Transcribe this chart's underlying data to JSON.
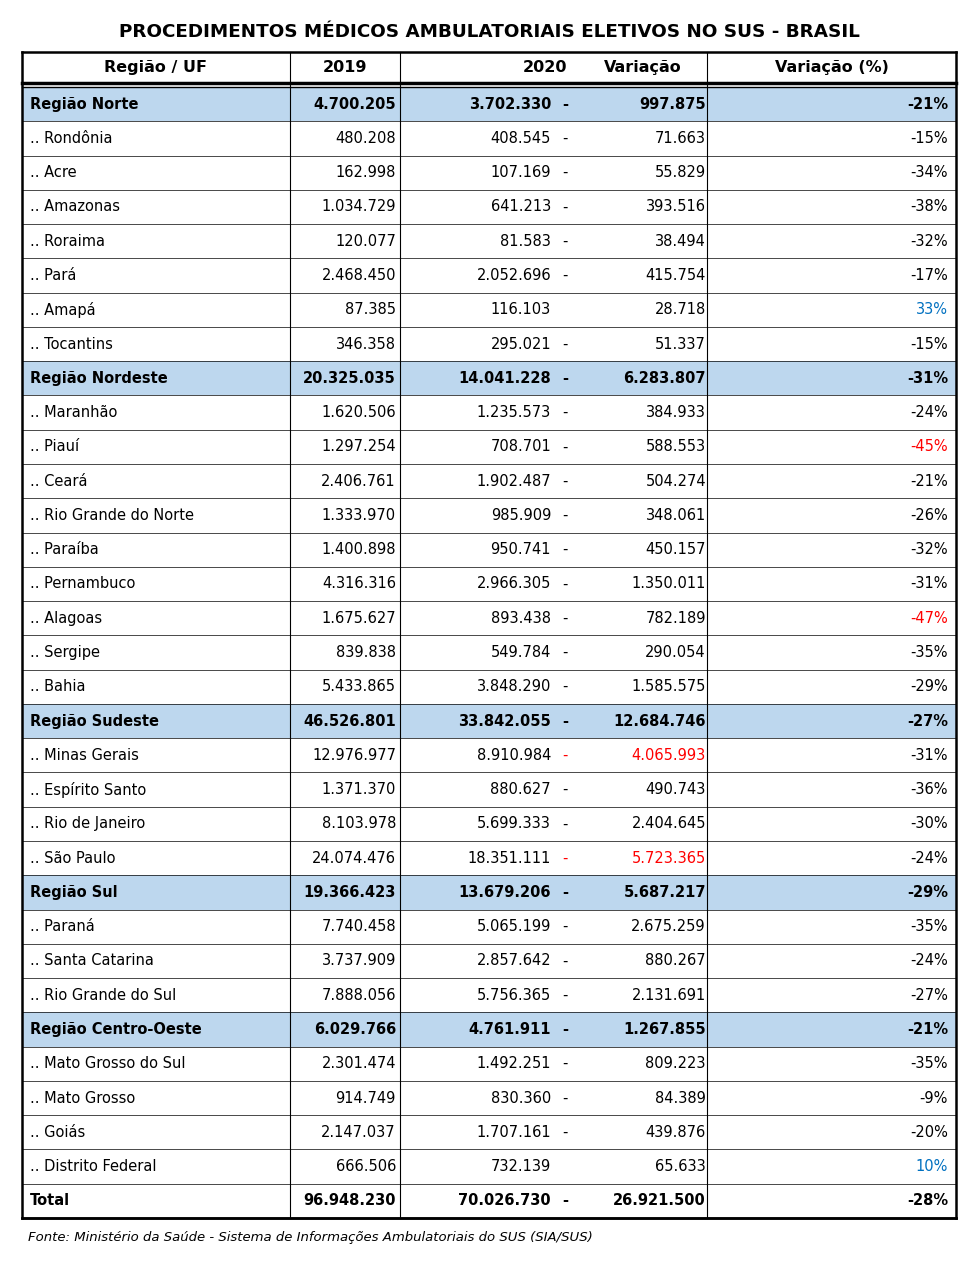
{
  "title": "PROCEDIMENTOS MÉDICOS AMBULATORIAIS ELETIVOS NO SUS - BRASIL",
  "footer": "Fonte: Ministério da Saúde - Sistema de Informações Ambulatoriais do SUS (SIA/SUS)",
  "region_bg_color": "#BDD7EE",
  "rows": [
    {
      "label": "Região Norte",
      "val2019": "4.700.205",
      "val2020": "3.702.330",
      "dash": "-",
      "variacao": "997.875",
      "pct": "-21%",
      "is_region": true,
      "pct_color": "black",
      "var_color": "black",
      "dash_color": "black"
    },
    {
      "label": ".. Rondônia",
      "val2019": "480.208",
      "val2020": "408.545",
      "dash": "-",
      "variacao": "71.663",
      "pct": "-15%",
      "is_region": false,
      "pct_color": "black",
      "var_color": "black",
      "dash_color": "black"
    },
    {
      "label": ".. Acre",
      "val2019": "162.998",
      "val2020": "107.169",
      "dash": "-",
      "variacao": "55.829",
      "pct": "-34%",
      "is_region": false,
      "pct_color": "black",
      "var_color": "black",
      "dash_color": "black"
    },
    {
      "label": ".. Amazonas",
      "val2019": "1.034.729",
      "val2020": "641.213",
      "dash": "-",
      "variacao": "393.516",
      "pct": "-38%",
      "is_region": false,
      "pct_color": "black",
      "var_color": "black",
      "dash_color": "black"
    },
    {
      "label": ".. Roraima",
      "val2019": "120.077",
      "val2020": "81.583",
      "dash": "-",
      "variacao": "38.494",
      "pct": "-32%",
      "is_region": false,
      "pct_color": "black",
      "var_color": "black",
      "dash_color": "black"
    },
    {
      "label": ".. Pará",
      "val2019": "2.468.450",
      "val2020": "2.052.696",
      "dash": "-",
      "variacao": "415.754",
      "pct": "-17%",
      "is_region": false,
      "pct_color": "black",
      "var_color": "black",
      "dash_color": "black"
    },
    {
      "label": ".. Amapá",
      "val2019": "87.385",
      "val2020": "116.103",
      "dash": "",
      "variacao": "28.718",
      "pct": "33%",
      "is_region": false,
      "pct_color": "#0070C0",
      "var_color": "black",
      "dash_color": "black"
    },
    {
      "label": ".. Tocantins",
      "val2019": "346.358",
      "val2020": "295.021",
      "dash": "-",
      "variacao": "51.337",
      "pct": "-15%",
      "is_region": false,
      "pct_color": "black",
      "var_color": "black",
      "dash_color": "black"
    },
    {
      "label": "Região Nordeste",
      "val2019": "20.325.035",
      "val2020": "14.041.228",
      "dash": "-",
      "variacao": "6.283.807",
      "pct": "-31%",
      "is_region": true,
      "pct_color": "black",
      "var_color": "black",
      "dash_color": "black"
    },
    {
      "label": ".. Maranhão",
      "val2019": "1.620.506",
      "val2020": "1.235.573",
      "dash": "-",
      "variacao": "384.933",
      "pct": "-24%",
      "is_region": false,
      "pct_color": "black",
      "var_color": "black",
      "dash_color": "black"
    },
    {
      "label": ".. Piauí",
      "val2019": "1.297.254",
      "val2020": "708.701",
      "dash": "-",
      "variacao": "588.553",
      "pct": "-45%",
      "is_region": false,
      "pct_color": "#FF0000",
      "var_color": "black",
      "dash_color": "black"
    },
    {
      "label": ".. Ceará",
      "val2019": "2.406.761",
      "val2020": "1.902.487",
      "dash": "-",
      "variacao": "504.274",
      "pct": "-21%",
      "is_region": false,
      "pct_color": "black",
      "var_color": "black",
      "dash_color": "black"
    },
    {
      "label": ".. Rio Grande do Norte",
      "val2019": "1.333.970",
      "val2020": "985.909",
      "dash": "-",
      "variacao": "348.061",
      "pct": "-26%",
      "is_region": false,
      "pct_color": "black",
      "var_color": "black",
      "dash_color": "black"
    },
    {
      "label": ".. Paraíba",
      "val2019": "1.400.898",
      "val2020": "950.741",
      "dash": "-",
      "variacao": "450.157",
      "pct": "-32%",
      "is_region": false,
      "pct_color": "black",
      "var_color": "black",
      "dash_color": "black"
    },
    {
      "label": ".. Pernambuco",
      "val2019": "4.316.316",
      "val2020": "2.966.305",
      "dash": "-",
      "variacao": "1.350.011",
      "pct": "-31%",
      "is_region": false,
      "pct_color": "black",
      "var_color": "black",
      "dash_color": "black"
    },
    {
      "label": ".. Alagoas",
      "val2019": "1.675.627",
      "val2020": "893.438",
      "dash": "-",
      "variacao": "782.189",
      "pct": "-47%",
      "is_region": false,
      "pct_color": "#FF0000",
      "var_color": "black",
      "dash_color": "black"
    },
    {
      "label": ".. Sergipe",
      "val2019": "839.838",
      "val2020": "549.784",
      "dash": "-",
      "variacao": "290.054",
      "pct": "-35%",
      "is_region": false,
      "pct_color": "black",
      "var_color": "black",
      "dash_color": "black"
    },
    {
      "label": ".. Bahia",
      "val2019": "5.433.865",
      "val2020": "3.848.290",
      "dash": "-",
      "variacao": "1.585.575",
      "pct": "-29%",
      "is_region": false,
      "pct_color": "black",
      "var_color": "black",
      "dash_color": "black"
    },
    {
      "label": "Região Sudeste",
      "val2019": "46.526.801",
      "val2020": "33.842.055",
      "dash": "-",
      "variacao": "12.684.746",
      "pct": "-27%",
      "is_region": true,
      "pct_color": "black",
      "var_color": "black",
      "dash_color": "black"
    },
    {
      "label": ".. Minas Gerais",
      "val2019": "12.976.977",
      "val2020": "8.910.984",
      "dash": "-",
      "variacao": "4.065.993",
      "pct": "-31%",
      "is_region": false,
      "pct_color": "black",
      "var_color": "#FF0000",
      "dash_color": "#FF0000"
    },
    {
      "label": ".. Espírito Santo",
      "val2019": "1.371.370",
      "val2020": "880.627",
      "dash": "-",
      "variacao": "490.743",
      "pct": "-36%",
      "is_region": false,
      "pct_color": "black",
      "var_color": "black",
      "dash_color": "black"
    },
    {
      "label": ".. Rio de Janeiro",
      "val2019": "8.103.978",
      "val2020": "5.699.333",
      "dash": "-",
      "variacao": "2.404.645",
      "pct": "-30%",
      "is_region": false,
      "pct_color": "black",
      "var_color": "black",
      "dash_color": "black"
    },
    {
      "label": ".. São Paulo",
      "val2019": "24.074.476",
      "val2020": "18.351.111",
      "dash": "-",
      "variacao": "5.723.365",
      "pct": "-24%",
      "is_region": false,
      "pct_color": "black",
      "var_color": "#FF0000",
      "dash_color": "#FF0000"
    },
    {
      "label": "Região Sul",
      "val2019": "19.366.423",
      "val2020": "13.679.206",
      "dash": "-",
      "variacao": "5.687.217",
      "pct": "-29%",
      "is_region": true,
      "pct_color": "black",
      "var_color": "black",
      "dash_color": "black"
    },
    {
      "label": ".. Paraná",
      "val2019": "7.740.458",
      "val2020": "5.065.199",
      "dash": "-",
      "variacao": "2.675.259",
      "pct": "-35%",
      "is_region": false,
      "pct_color": "black",
      "var_color": "black",
      "dash_color": "black"
    },
    {
      "label": ".. Santa Catarina",
      "val2019": "3.737.909",
      "val2020": "2.857.642",
      "dash": "-",
      "variacao": "880.267",
      "pct": "-24%",
      "is_region": false,
      "pct_color": "black",
      "var_color": "black",
      "dash_color": "black"
    },
    {
      "label": ".. Rio Grande do Sul",
      "val2019": "7.888.056",
      "val2020": "5.756.365",
      "dash": "-",
      "variacao": "2.131.691",
      "pct": "-27%",
      "is_region": false,
      "pct_color": "black",
      "var_color": "black",
      "dash_color": "black"
    },
    {
      "label": "Região Centro-Oeste",
      "val2019": "6.029.766",
      "val2020": "4.761.911",
      "dash": "-",
      "variacao": "1.267.855",
      "pct": "-21%",
      "is_region": true,
      "pct_color": "black",
      "var_color": "black",
      "dash_color": "black"
    },
    {
      "label": ".. Mato Grosso do Sul",
      "val2019": "2.301.474",
      "val2020": "1.492.251",
      "dash": "-",
      "variacao": "809.223",
      "pct": "-35%",
      "is_region": false,
      "pct_color": "black",
      "var_color": "black",
      "dash_color": "black"
    },
    {
      "label": ".. Mato Grosso",
      "val2019": "914.749",
      "val2020": "830.360",
      "dash": "-",
      "variacao": "84.389",
      "pct": "-9%",
      "is_region": false,
      "pct_color": "black",
      "var_color": "black",
      "dash_color": "black"
    },
    {
      "label": ".. Goiás",
      "val2019": "2.147.037",
      "val2020": "1.707.161",
      "dash": "-",
      "variacao": "439.876",
      "pct": "-20%",
      "is_region": false,
      "pct_color": "black",
      "var_color": "black",
      "dash_color": "black"
    },
    {
      "label": ".. Distrito Federal",
      "val2019": "666.506",
      "val2020": "732.139",
      "dash": "",
      "variacao": "65.633",
      "pct": "10%",
      "is_region": false,
      "pct_color": "#0070C0",
      "var_color": "black",
      "dash_color": "black"
    },
    {
      "label": "Total",
      "val2019": "96.948.230",
      "val2020": "70.026.730",
      "dash": "-",
      "variacao": "26.921.500",
      "pct": "-28%",
      "is_region": false,
      "pct_color": "black",
      "var_color": "black",
      "dash_color": "black",
      "is_total": true
    }
  ]
}
